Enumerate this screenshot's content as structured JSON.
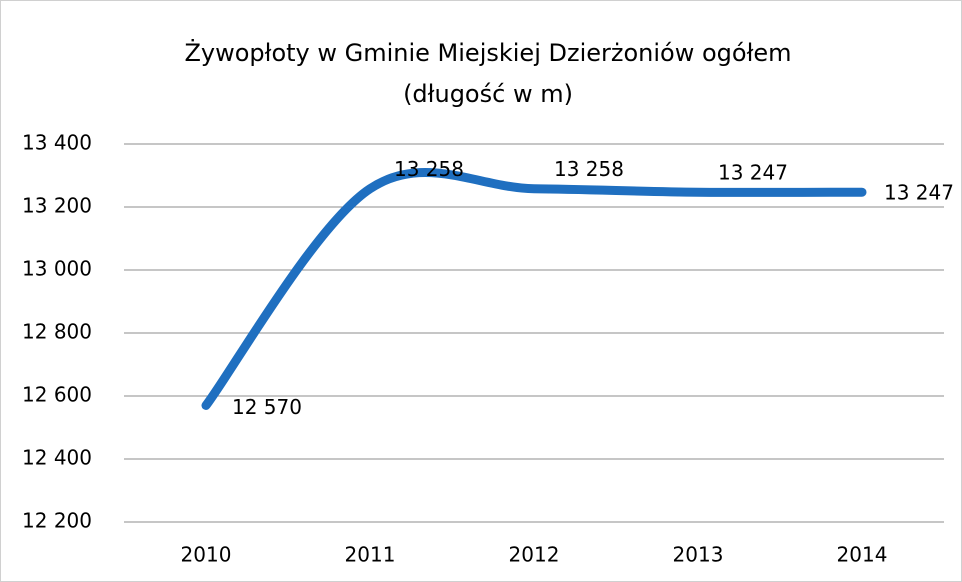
{
  "chart_data": {
    "type": "line",
    "title": "Żywopłoty w Gminie Miejskiej Dzierżoniów ogółem",
    "subtitle": "(długość w m)",
    "categories": [
      "2010",
      "2011",
      "2012",
      "2013",
      "2014"
    ],
    "series": [
      {
        "name": "Żywopłoty",
        "color": "#1f6fc0",
        "values": [
          12570,
          13258,
          13258,
          13247,
          13247
        ],
        "value_labels": [
          "12 570",
          "13 258",
          "13 258",
          "13 247",
          "13 247"
        ]
      }
    ],
    "ylim": [
      12200,
      13400
    ],
    "yticks": [
      {
        "value": 12200,
        "label": "12 200"
      },
      {
        "value": 12400,
        "label": "12 400"
      },
      {
        "value": 12600,
        "label": "12 600"
      },
      {
        "value": 12800,
        "label": "12 800"
      },
      {
        "value": 13000,
        "label": "13 000"
      },
      {
        "value": 13200,
        "label": "13 200"
      },
      {
        "value": 13400,
        "label": "13 400"
      }
    ],
    "grid": true,
    "smooth": true
  }
}
